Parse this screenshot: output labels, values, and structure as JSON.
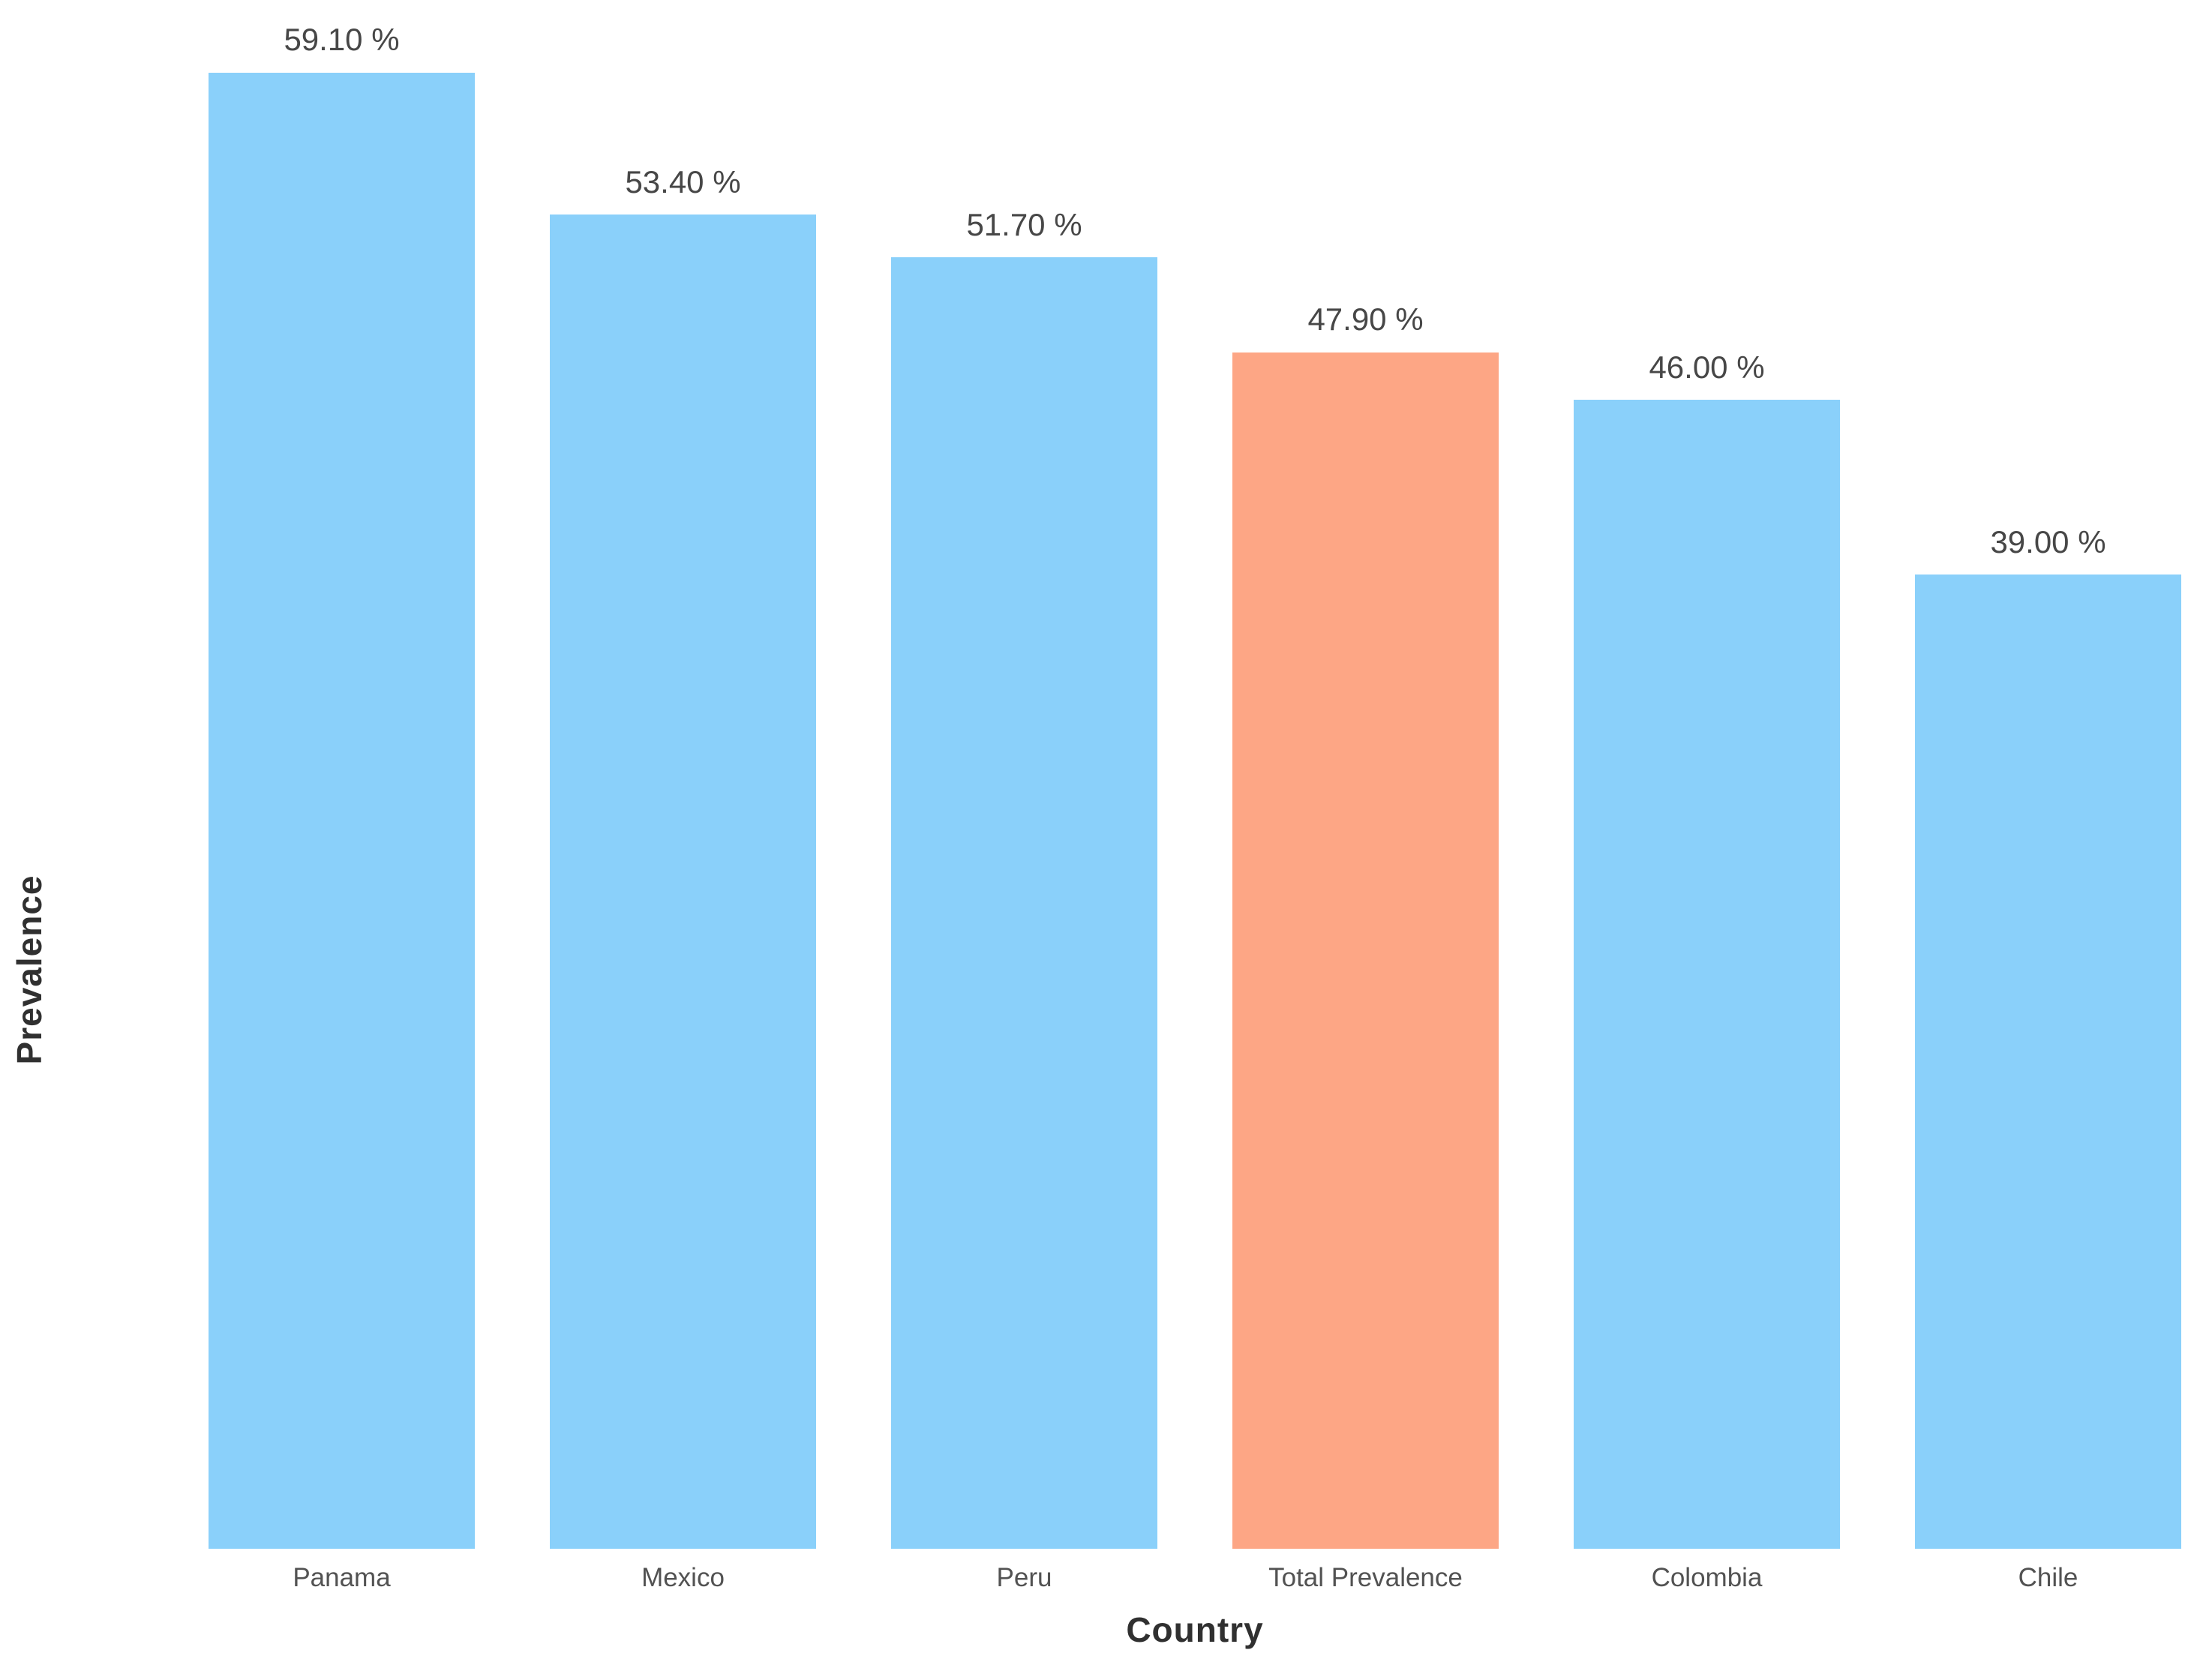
{
  "chart_data": {
    "type": "bar",
    "title": "",
    "xlabel": "Country",
    "ylabel": "Prevalence",
    "categories": [
      "Panama",
      "Mexico",
      "Peru",
      "Total Prevalence",
      "Colombia",
      "Chile"
    ],
    "values": [
      59.1,
      53.4,
      51.7,
      47.9,
      46.0,
      39.0
    ],
    "value_labels": [
      "59.10 %",
      "53.40 %",
      "51.70 %",
      "47.90 %",
      "46.00 %",
      "39.00 %"
    ],
    "ylim": [
      0,
      62
    ],
    "grid": "off",
    "legend": "none",
    "colors": {
      "bar_default": "#8AD0FA",
      "bar_highlight": "#FDA685",
      "value_label_text": "#474747",
      "category_label_text": "#525252",
      "axis_title_text": "#303030",
      "background": "#FFFFFF"
    },
    "highlight_index": 3
  }
}
